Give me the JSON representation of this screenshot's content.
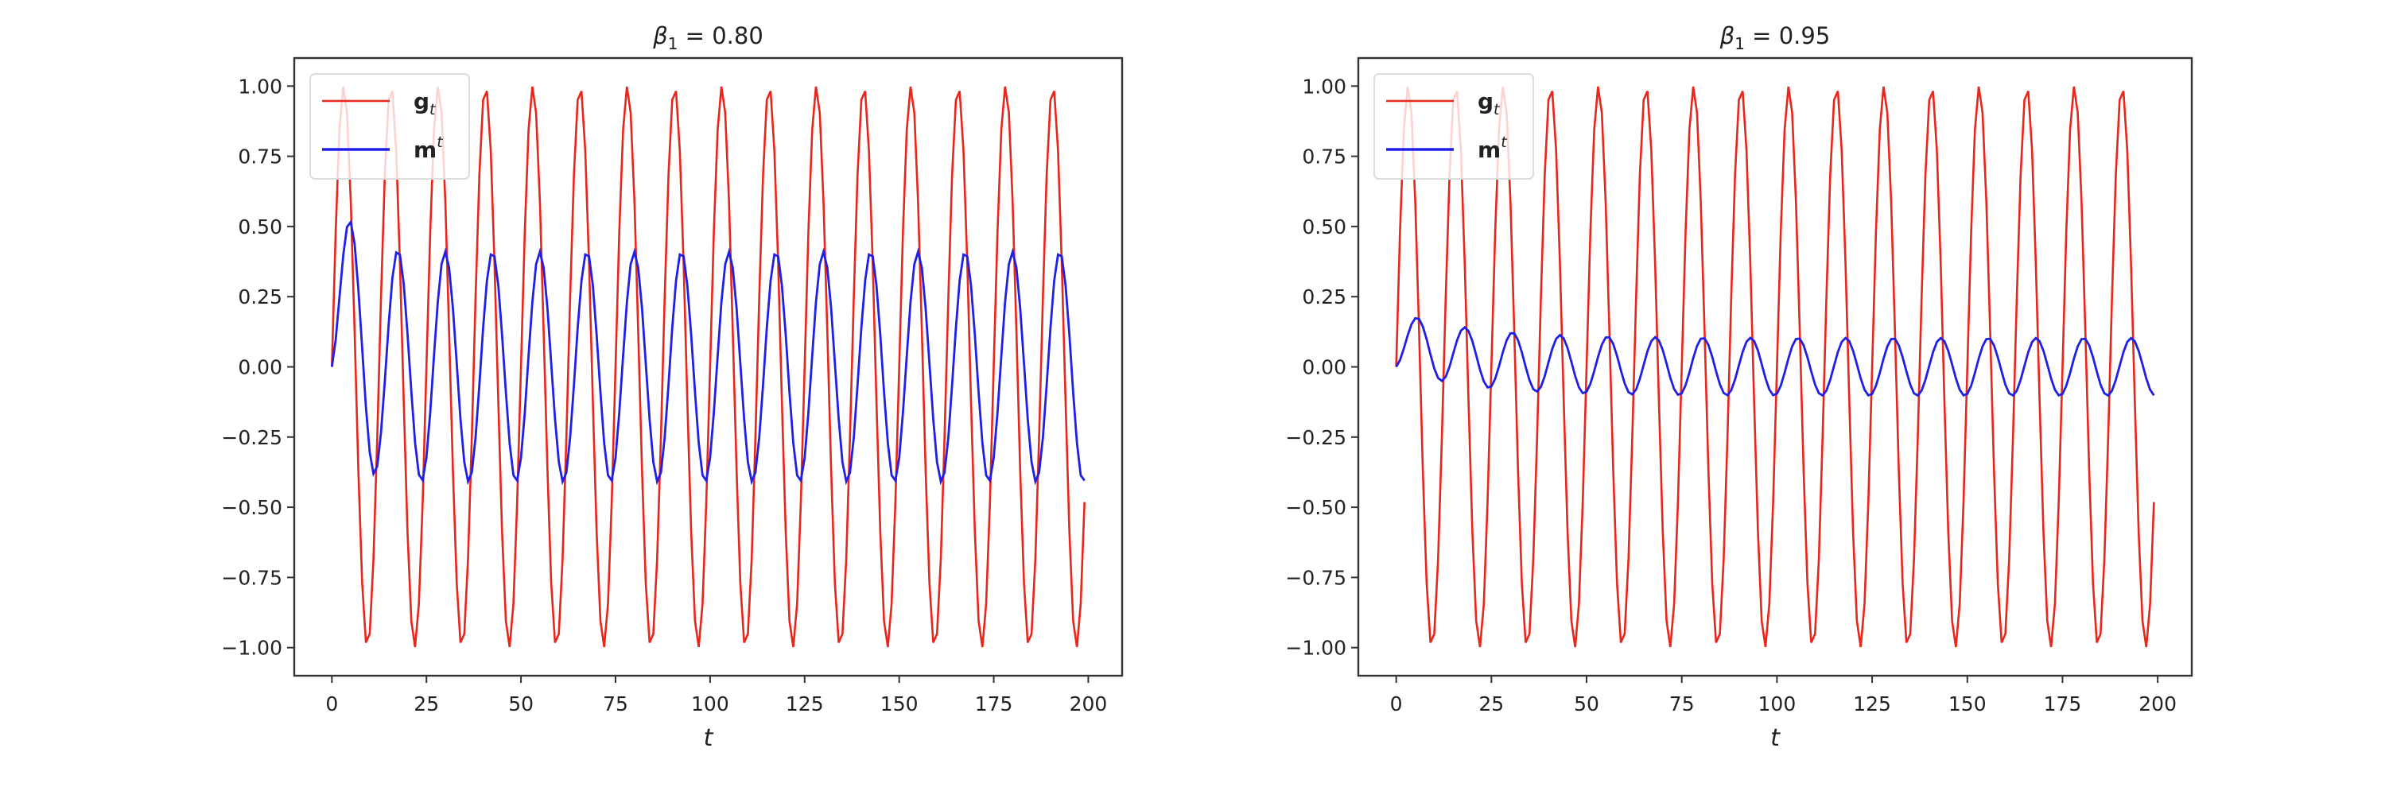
{
  "chart_data": [
    {
      "type": "line",
      "title": "β₁ = 0.80",
      "title_main": "β",
      "title_sub": "1",
      "title_rest": " = 0.80",
      "beta": 0.8,
      "xlabel": "t",
      "ylabel": "",
      "xlim": [
        -9.95,
        208.95
      ],
      "ylim": [
        -1.1,
        1.1
      ],
      "xticks": [
        0,
        25,
        50,
        75,
        100,
        125,
        150,
        175,
        200
      ],
      "xtick_labels": [
        "0",
        "25",
        "50",
        "75",
        "100",
        "125",
        "150",
        "175",
        "200"
      ],
      "yticks": [
        1.0,
        0.75,
        0.5,
        0.25,
        0.0,
        -0.25,
        -0.5,
        -0.75,
        -1.0
      ],
      "ytick_labels": [
        "1.00",
        "0.75",
        "0.50",
        "0.25",
        "0.00",
        "−0.25",
        "−0.50",
        "−0.75",
        "−1.00"
      ],
      "grid": false,
      "legend_placement": "top-left",
      "t_range": [
        0,
        199
      ],
      "series": [
        {
          "name": "g_t",
          "label_main": "g",
          "label_sub": "t",
          "color": "#e8261c",
          "definition": "sin(2πt/12.5)",
          "period": 12.5,
          "amplitude": 1.0
        },
        {
          "name": "m^t",
          "label_main": "m",
          "label_sup": "t",
          "color": "#1f1fe6",
          "definition": "m_t = β₁·m_{t-1} + (1−β₁)·g_t, m_0 = 0",
          "steady_amplitude": 0.41
        }
      ]
    },
    {
      "type": "line",
      "title": "β₁ = 0.95",
      "title_main": "β",
      "title_sub": "1",
      "title_rest": " = 0.95",
      "beta": 0.95,
      "xlabel": "t",
      "ylabel": "",
      "xlim": [
        -9.95,
        208.95
      ],
      "ylim": [
        -1.1,
        1.1
      ],
      "xticks": [
        0,
        25,
        50,
        75,
        100,
        125,
        150,
        175,
        200
      ],
      "xtick_labels": [
        "0",
        "25",
        "50",
        "75",
        "100",
        "125",
        "150",
        "175",
        "200"
      ],
      "yticks": [
        1.0,
        0.75,
        0.5,
        0.25,
        0.0,
        -0.25,
        -0.5,
        -0.75,
        -1.0
      ],
      "ytick_labels": [
        "1.00",
        "0.75",
        "0.50",
        "0.25",
        "0.00",
        "−0.25",
        "−0.50",
        "−0.75",
        "−1.00"
      ],
      "grid": false,
      "legend_placement": "top-left",
      "t_range": [
        0,
        199
      ],
      "series": [
        {
          "name": "g_t",
          "label_main": "g",
          "label_sub": "t",
          "color": "#e8261c",
          "definition": "sin(2πt/12.5)",
          "period": 12.5,
          "amplitude": 1.0
        },
        {
          "name": "m^t",
          "label_main": "m",
          "label_sup": "t",
          "color": "#1f1fe6",
          "definition": "m_t = β₁·m_{t-1} + (1−β₁)·g_t, m_0 = 0",
          "steady_amplitude": 0.1
        }
      ]
    }
  ]
}
